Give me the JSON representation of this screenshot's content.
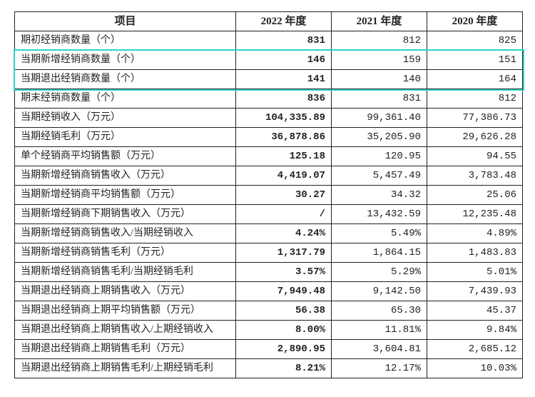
{
  "table": {
    "header_label": "项目",
    "years": [
      "2022 年度",
      "2021 年度",
      "2020 年度"
    ],
    "rows": [
      {
        "label": "期初经销商数量（个）",
        "v": [
          "831",
          "812",
          "825"
        ]
      },
      {
        "label": "当期新增经销商数量（个）",
        "v": [
          "146",
          "159",
          "151"
        ],
        "hl": true
      },
      {
        "label": "当期退出经销商数量（个）",
        "v": [
          "141",
          "140",
          "164"
        ],
        "hl": true
      },
      {
        "label": "期末经销商数量（个）",
        "v": [
          "836",
          "831",
          "812"
        ]
      },
      {
        "label": "当期经销收入（万元）",
        "v": [
          "104,335.89",
          "99,361.40",
          "77,386.73"
        ]
      },
      {
        "label": "当期经销毛利（万元）",
        "v": [
          "36,878.86",
          "35,205.90",
          "29,626.28"
        ]
      },
      {
        "label": "单个经销商平均销售额（万元）",
        "v": [
          "125.18",
          "120.95",
          "94.55"
        ]
      },
      {
        "label": "当期新增经销商销售收入（万元）",
        "v": [
          "4,419.07",
          "5,457.49",
          "3,783.48"
        ]
      },
      {
        "label": "当期新增经销商平均销售额（万元）",
        "v": [
          "30.27",
          "34.32",
          "25.06"
        ]
      },
      {
        "label": "当期新增经销商下期销售收入（万元）",
        "v": [
          "/",
          "13,432.59",
          "12,235.48"
        ]
      },
      {
        "label": "当期新增经销商销售收入/当期经销收入",
        "v": [
          "4.24%",
          "5.49%",
          "4.89%"
        ]
      },
      {
        "label": "当期新增经销商销售毛利（万元）",
        "v": [
          "1,317.79",
          "1,864.15",
          "1,483.83"
        ]
      },
      {
        "label": "当期新增经销商销售毛利/当期经销毛利",
        "v": [
          "3.57%",
          "5.29%",
          "5.01%"
        ]
      },
      {
        "label": "当期退出经销商上期销售收入（万元）",
        "v": [
          "7,949.48",
          "9,142.50",
          "7,439.93"
        ]
      },
      {
        "label": "当期退出经销商上期平均销售额（万元）",
        "v": [
          "56.38",
          "65.30",
          "45.37"
        ]
      },
      {
        "label": "当期退出经销商上期销售收入/上期经销收入",
        "v": [
          "8.00%",
          "11.81%",
          "9.84%"
        ]
      },
      {
        "label": "当期退出经销商上期销售毛利（万元）",
        "v": [
          "2,890.95",
          "3,604.81",
          "2,685.12"
        ]
      },
      {
        "label": "当期退出经销商上期销售毛利/上期经销毛利",
        "v": [
          "8.21%",
          "12.17%",
          "10.03%"
        ]
      }
    ],
    "bold_col_index": 0,
    "highlight_color": "#2bd4c8"
  }
}
